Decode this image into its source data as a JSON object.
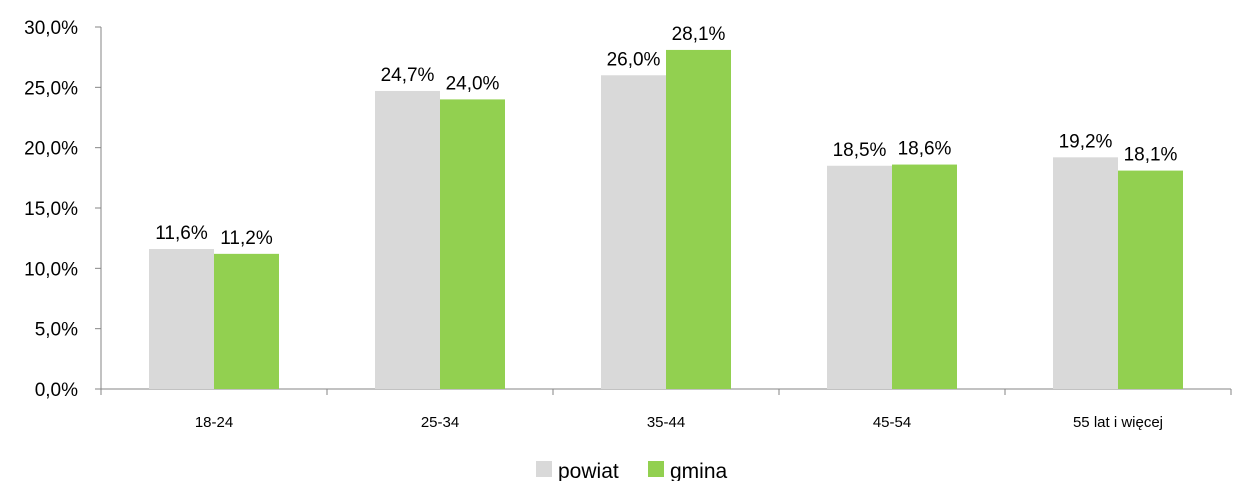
{
  "chart_data": {
    "type": "bar",
    "categories": [
      "18-24",
      "25-34",
      "35-44",
      "45-54",
      "55 lat i więcej"
    ],
    "series": [
      {
        "name": "powiat",
        "color": "#d9d9d9",
        "values": [
          11.6,
          24.7,
          26.0,
          18.5,
          19.2
        ],
        "labels": [
          "11,6%",
          "24,7%",
          "26,0%",
          "18,5%",
          "19,2%"
        ]
      },
      {
        "name": "gmina",
        "color": "#92d050",
        "values": [
          11.2,
          24.0,
          28.1,
          18.6,
          18.1
        ],
        "labels": [
          "11,2%",
          "24,0%",
          "28,1%",
          "18,6%",
          "18,1%"
        ]
      }
    ],
    "ylim": [
      0,
      30
    ],
    "yticks": [
      0,
      5,
      10,
      15,
      20,
      25,
      30
    ],
    "ytick_labels": [
      "0,0%",
      "5,0%",
      "10,0%",
      "15,0%",
      "20,0%",
      "25,0%",
      "30,0%"
    ],
    "grid": false,
    "legend_position": "bottom"
  }
}
